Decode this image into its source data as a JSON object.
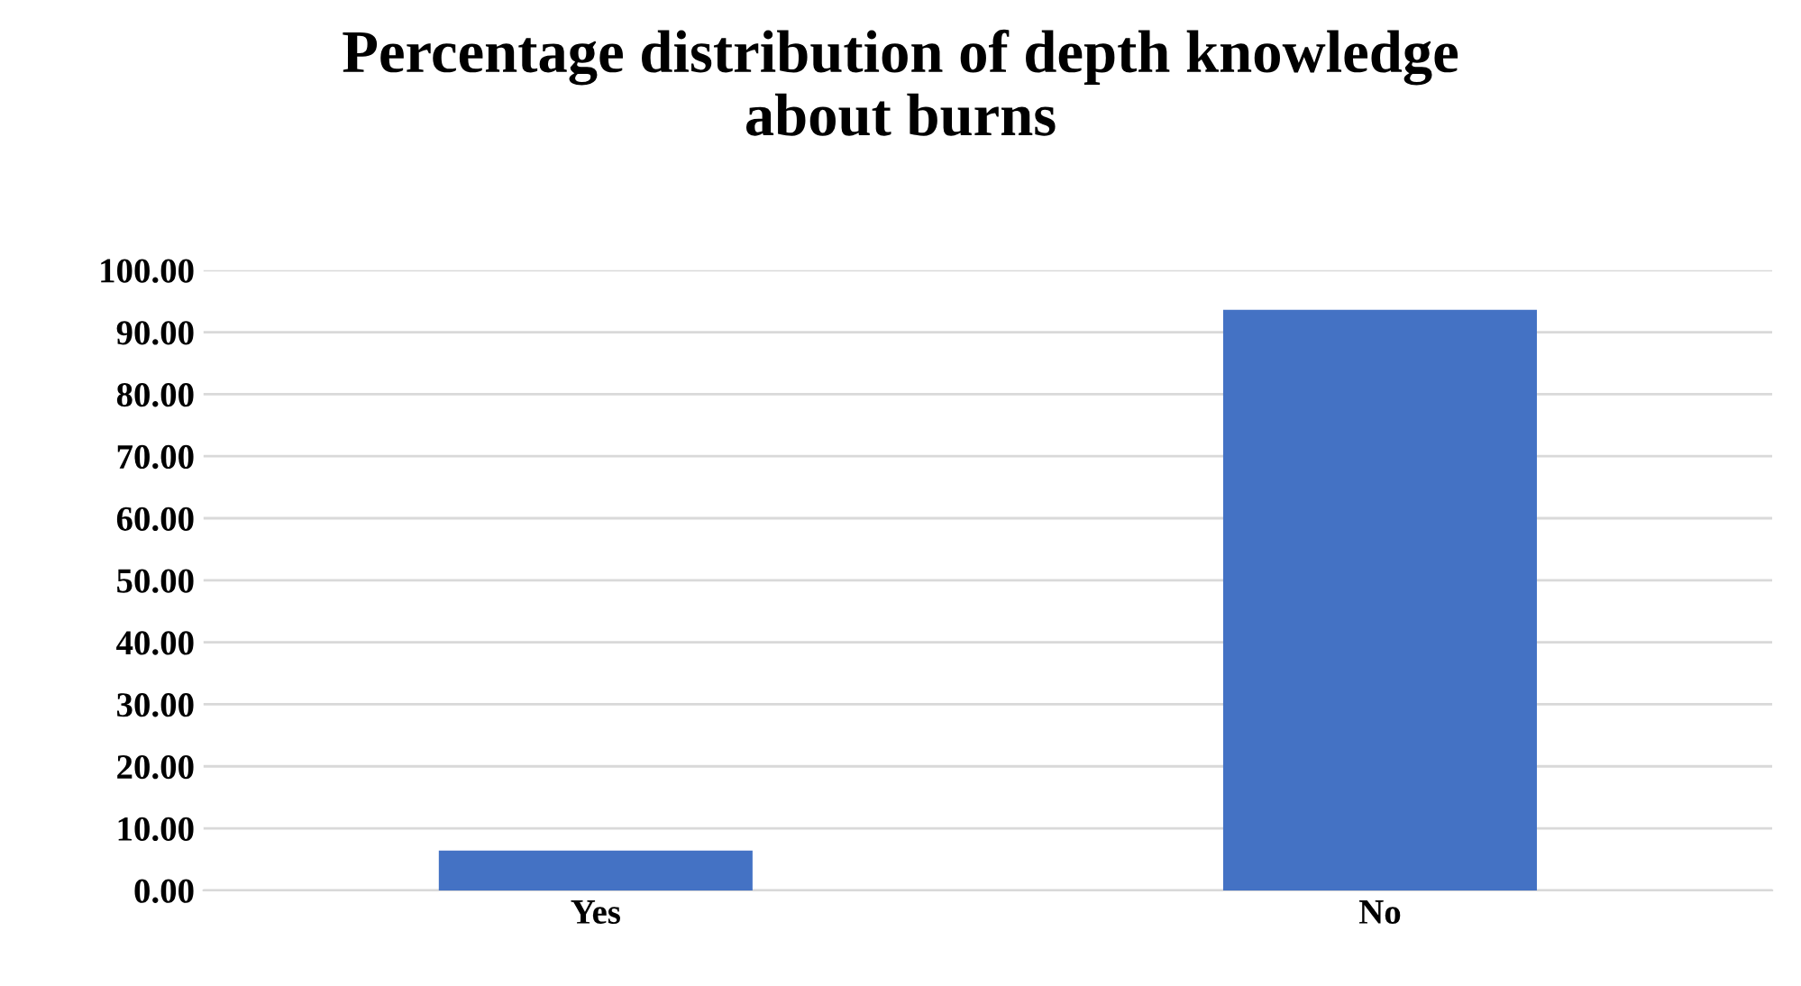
{
  "chart_data": {
    "type": "bar",
    "title": "Percentage distribution of depth knowledge\nabout burns",
    "categories": [
      "Yes",
      "No"
    ],
    "series": [
      {
        "color": "#4472c4",
        "values": [
          6.4,
          93.6
        ]
      }
    ],
    "ylim": [
      0,
      100
    ],
    "yticks": [
      {
        "value": 0,
        "label": "0.00"
      },
      {
        "value": 10,
        "label": "10.00"
      },
      {
        "value": 20,
        "label": "20.00"
      },
      {
        "value": 30,
        "label": "30.00"
      },
      {
        "value": 40,
        "label": "40.00"
      },
      {
        "value": 50,
        "label": "50.00"
      },
      {
        "value": 60,
        "label": "60.00"
      },
      {
        "value": 70,
        "label": "70.00"
      },
      {
        "value": 80,
        "label": "80.00"
      },
      {
        "value": 90,
        "label": "90.00"
      },
      {
        "value": 100,
        "label": "100.00"
      }
    ],
    "grid": "y",
    "legend": false
  }
}
